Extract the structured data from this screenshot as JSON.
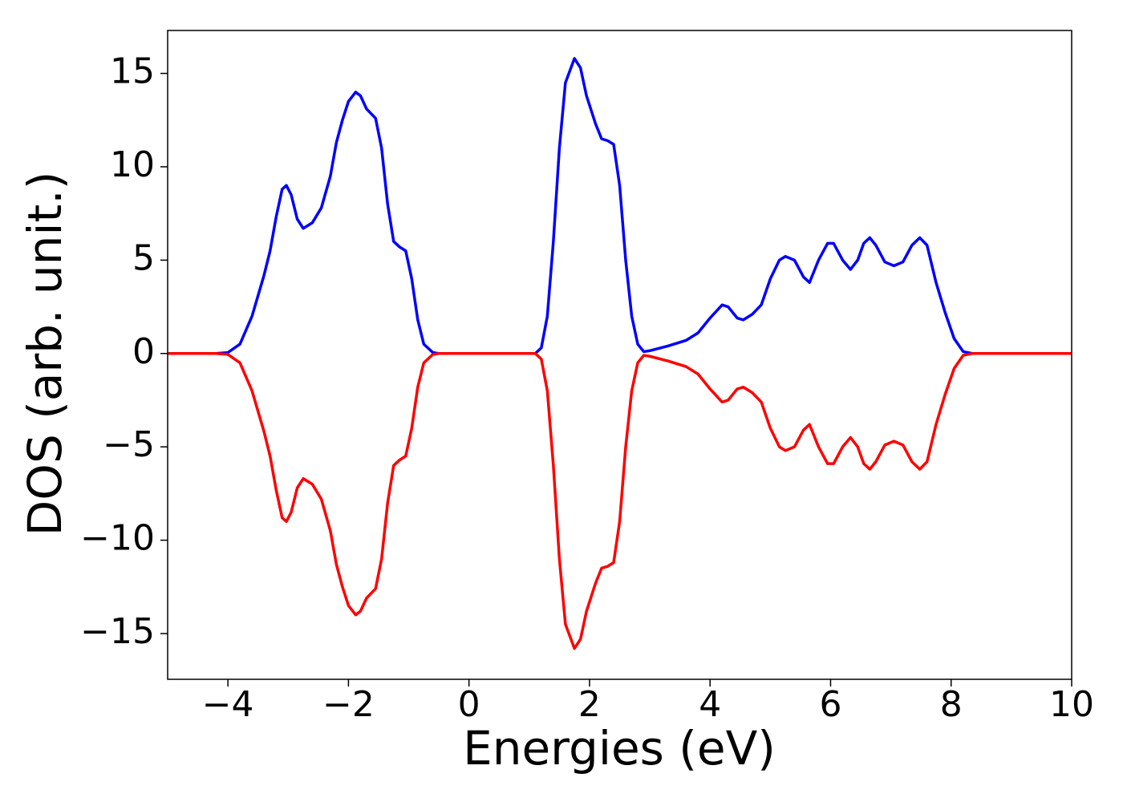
{
  "chart_data": {
    "type": "line",
    "xlabel": "Energies (eV)",
    "ylabel": "DOS (arb. unit.)",
    "x": [
      -5,
      -4.2,
      -4,
      -3.8,
      -3.6,
      -3.4,
      -3.3,
      -3.2,
      -3.1,
      -3.03,
      -2.95,
      -2.85,
      -2.75,
      -2.6,
      -2.45,
      -2.3,
      -2.2,
      -2.1,
      -2.0,
      -1.88,
      -1.8,
      -1.7,
      -1.55,
      -1.45,
      -1.35,
      -1.25,
      -1.15,
      -1.05,
      -0.95,
      -0.85,
      -0.75,
      -0.6,
      -0.5,
      1.1,
      1.2,
      1.3,
      1.4,
      1.5,
      1.6,
      1.75,
      1.85,
      1.95,
      2.1,
      2.2,
      2.3,
      2.4,
      2.5,
      2.6,
      2.7,
      2.8,
      2.9,
      3.0,
      3.3,
      3.6,
      3.8,
      4.0,
      4.2,
      4.3,
      4.45,
      4.55,
      4.7,
      4.85,
      5.0,
      5.15,
      5.25,
      5.4,
      5.55,
      5.65,
      5.8,
      5.95,
      6.05,
      6.2,
      6.33,
      6.45,
      6.55,
      6.65,
      6.75,
      6.9,
      7.05,
      7.2,
      7.35,
      7.48,
      7.6,
      7.75,
      7.9,
      8.05,
      8.2,
      8.35,
      10
    ],
    "series": [
      {
        "color": "#0000ff",
        "values": [
          0,
          0,
          0.05,
          0.5,
          2,
          4.2,
          5.5,
          7.3,
          8.8,
          9.0,
          8.5,
          7.2,
          6.7,
          7.0,
          7.8,
          9.5,
          11.3,
          12.5,
          13.5,
          14.0,
          13.8,
          13.1,
          12.6,
          11,
          8,
          6,
          5.7,
          5.5,
          4,
          1.8,
          0.5,
          0.05,
          0,
          0,
          0.3,
          2,
          6,
          11,
          14.5,
          15.8,
          15.3,
          13.8,
          12.3,
          11.5,
          11.4,
          11.2,
          9,
          5,
          2,
          0.5,
          0.1,
          0.15,
          0.4,
          0.7,
          1.1,
          1.9,
          2.6,
          2.5,
          1.9,
          1.8,
          2.1,
          2.6,
          4,
          5,
          5.2,
          5,
          4.1,
          3.8,
          5,
          5.9,
          5.9,
          5,
          4.5,
          5,
          5.9,
          6.2,
          5.8,
          4.9,
          4.7,
          4.9,
          5.8,
          6.2,
          5.8,
          3.8,
          2.2,
          0.8,
          0.1,
          0,
          0
        ]
      },
      {
        "color": "#ff0000",
        "values": [
          0,
          0,
          -0.05,
          -0.5,
          -2,
          -4.2,
          -5.5,
          -7.3,
          -8.8,
          -9.0,
          -8.5,
          -7.2,
          -6.7,
          -7.0,
          -7.8,
          -9.5,
          -11.3,
          -12.5,
          -13.5,
          -14.0,
          -13.8,
          -13.1,
          -12.6,
          -11,
          -8,
          -6,
          -5.7,
          -5.5,
          -4,
          -1.8,
          -0.5,
          -0.05,
          0,
          0,
          -0.3,
          -2,
          -6,
          -11,
          -14.5,
          -15.8,
          -15.3,
          -13.8,
          -12.3,
          -11.5,
          -11.4,
          -11.2,
          -9,
          -5,
          -2,
          -0.5,
          -0.1,
          -0.15,
          -0.4,
          -0.7,
          -1.1,
          -1.9,
          -2.6,
          -2.5,
          -1.9,
          -1.8,
          -2.1,
          -2.6,
          -4,
          -5,
          -5.2,
          -5,
          -4.1,
          -3.8,
          -5,
          -5.9,
          -5.9,
          -5,
          -4.5,
          -5,
          -5.9,
          -6.2,
          -5.8,
          -4.9,
          -4.7,
          -4.9,
          -5.8,
          -6.2,
          -5.8,
          -3.8,
          -2.2,
          -0.8,
          -0.1,
          0,
          0
        ]
      }
    ],
    "xlim": [
      -5,
      10
    ],
    "xticks": [
      {
        "value": -4,
        "label": "−4"
      },
      {
        "value": -2,
        "label": "−2"
      },
      0,
      2,
      4,
      6,
      8,
      10
    ],
    "ylim": [
      -17.45,
      17.3
    ],
    "yticks": [
      {
        "value": -15,
        "label": "−15"
      },
      {
        "value": -10,
        "label": "−10"
      },
      {
        "value": -5,
        "label": "−5"
      },
      0,
      5,
      10,
      15
    ],
    "grid": false
  }
}
